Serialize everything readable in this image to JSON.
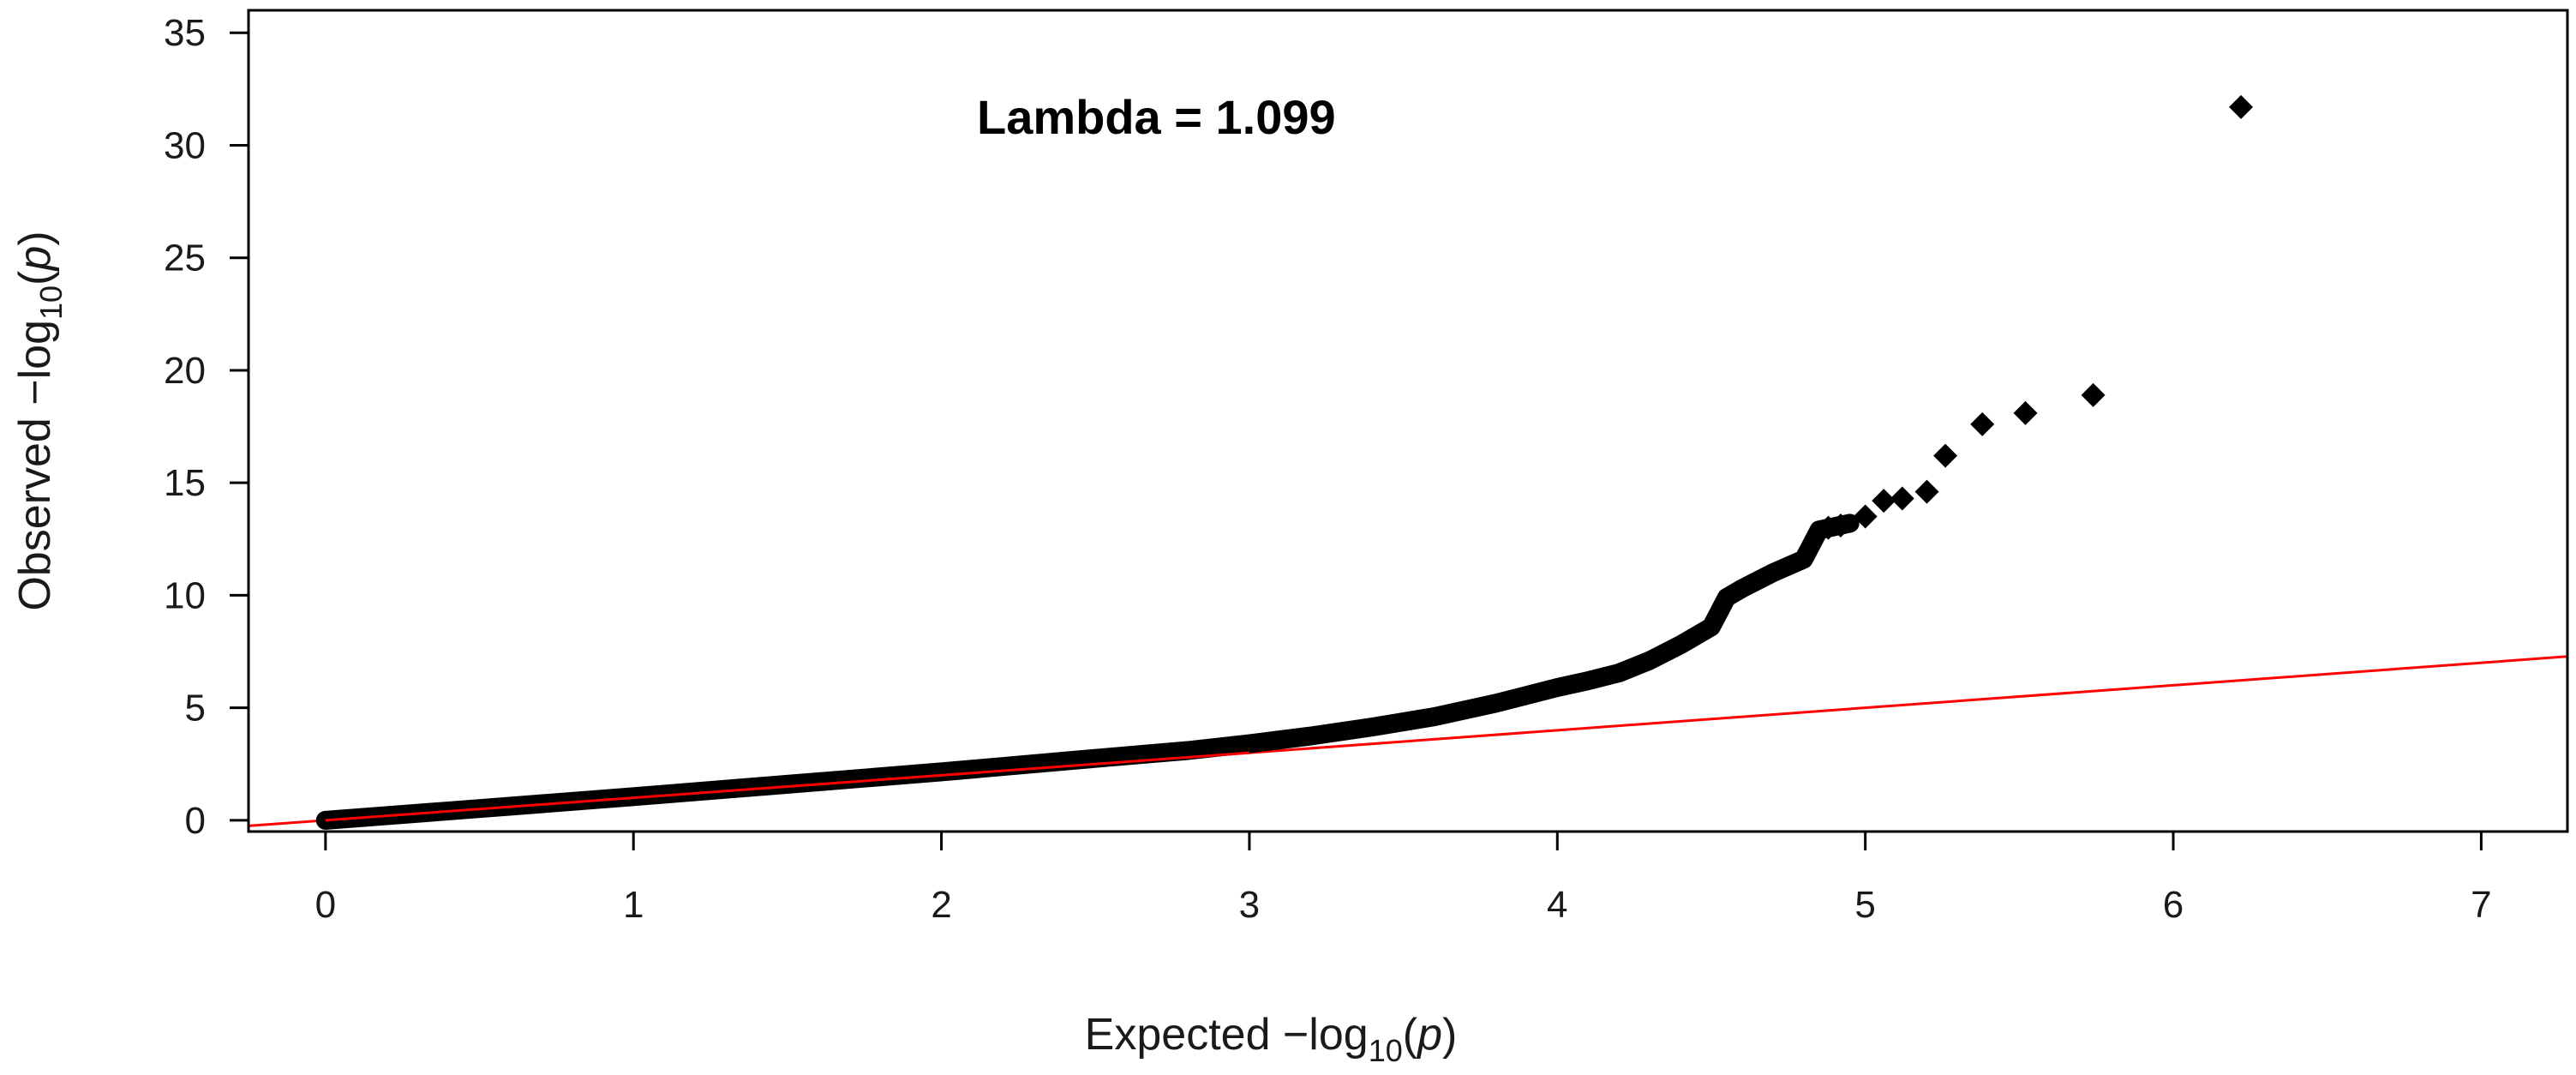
{
  "chart_data": {
    "type": "scatter",
    "title": "",
    "annotation": "Lambda = 1.099",
    "xlabel": {
      "prefix": "Expected  −log",
      "subscript": "10",
      "suffix": "(",
      "variable": "p",
      "close": ")"
    },
    "ylabel": {
      "prefix": "Observed  −log",
      "subscript": "10",
      "suffix": "(",
      "variable": "p",
      "close": ")"
    },
    "xlim": [
      -0.25,
      7.28
    ],
    "ylim": [
      -0.5,
      36.0
    ],
    "x_ticks": [
      0,
      1,
      2,
      3,
      4,
      5,
      6,
      7
    ],
    "y_ticks": [
      0,
      5,
      10,
      15,
      20,
      25,
      30,
      35
    ],
    "grid": false,
    "reference_line": {
      "slope": 1,
      "intercept": 0,
      "color": "#ff0000"
    },
    "point_color": "#000000",
    "series": [
      {
        "name": "observed",
        "curve": [
          [
            0.0,
            0.0
          ],
          [
            0.5,
            0.52
          ],
          [
            1.0,
            1.05
          ],
          [
            1.5,
            1.6
          ],
          [
            2.0,
            2.15
          ],
          [
            2.5,
            2.75
          ],
          [
            2.8,
            3.1
          ],
          [
            3.0,
            3.4
          ],
          [
            3.2,
            3.75
          ],
          [
            3.4,
            4.15
          ],
          [
            3.6,
            4.6
          ],
          [
            3.8,
            5.2
          ],
          [
            4.0,
            5.9
          ],
          [
            4.1,
            6.2
          ],
          [
            4.2,
            6.55
          ],
          [
            4.3,
            7.1
          ],
          [
            4.4,
            7.8
          ],
          [
            4.5,
            8.6
          ],
          [
            4.55,
            9.9
          ],
          [
            4.6,
            10.3
          ],
          [
            4.7,
            11.0
          ],
          [
            4.8,
            11.6
          ],
          [
            4.85,
            12.9
          ],
          [
            4.95,
            13.2
          ]
        ],
        "points": [
          [
            4.88,
            13.0
          ],
          [
            4.92,
            13.1
          ],
          [
            5.0,
            13.5
          ],
          [
            5.06,
            14.2
          ],
          [
            5.12,
            14.3
          ],
          [
            5.2,
            14.6
          ],
          [
            5.26,
            16.2
          ],
          [
            5.38,
            17.6
          ],
          [
            5.52,
            18.1
          ],
          [
            5.74,
            18.9
          ],
          [
            6.22,
            31.7
          ]
        ]
      }
    ]
  }
}
